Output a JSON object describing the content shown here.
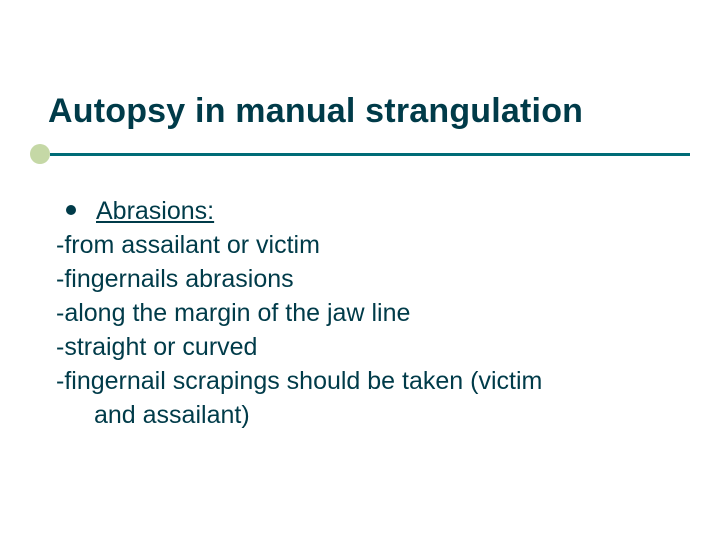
{
  "slide": {
    "title": "Autopsy in manual strangulation",
    "title_color": "#003b49",
    "title_fontsize": 34,
    "title_fontweight": "bold",
    "accent_circle_color": "#c5d8a6",
    "rule_line_color": "#006c77",
    "body_color": "#003b49",
    "body_fontsize": 25,
    "bullet_dot_color": "#003b49",
    "background_color": "#ffffff",
    "bullet_heading": "Abrasions:",
    "lines": {
      "l1": "-from assailant or victim",
      "l2": "-fingernails abrasions",
      "l3": "-along the margin of the jaw line",
      "l4": "-straight or curved",
      "l5": "-fingernail scrapings should be taken (victim",
      "l6": "and assailant)"
    }
  }
}
